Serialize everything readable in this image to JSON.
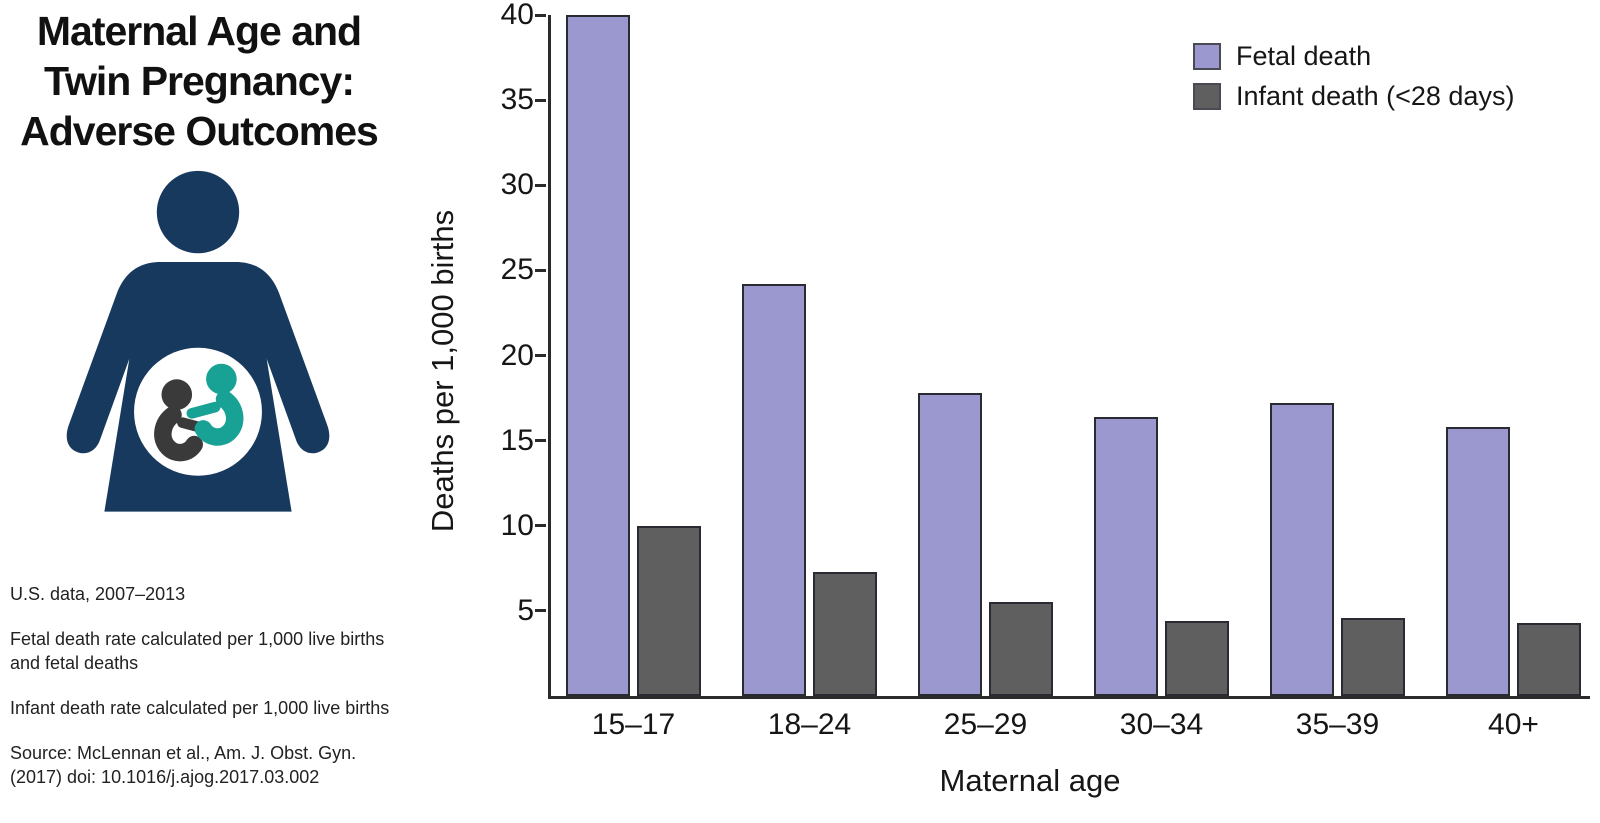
{
  "left_panel": {
    "title_lines": [
      "Maternal Age and",
      "Twin Pregnancy:",
      "Adverse Outcomes"
    ],
    "icon": "pregnant-woman-with-twins-icon",
    "notes": [
      {
        "lines": [
          "U.S. data, 2007–2013"
        ]
      },
      {
        "lines": [
          "Fetal death rate calculated per 1,000 live births",
          "and fetal deaths"
        ]
      },
      {
        "lines": [
          "Infant death rate calculated per 1,000 live births"
        ]
      },
      {
        "lines": [
          "Source: McLennan et al., Am. J. Obst. Gyn.",
          "(2017) doi: 10.1016/j.ajog.2017.03.002"
        ]
      }
    ]
  },
  "chart_data": {
    "type": "bar",
    "categories": [
      "15–17",
      "18–24",
      "25–29",
      "30–34",
      "35–39",
      "40+"
    ],
    "series": [
      {
        "name": "Fetal death",
        "color": "#9b98cf",
        "values": [
          40.0,
          24.2,
          17.8,
          16.4,
          17.2,
          15.8
        ]
      },
      {
        "name": "Infant death (<28 days)",
        "color": "#5f5f5f",
        "values": [
          10.0,
          7.3,
          5.5,
          4.4,
          4.6,
          4.3
        ]
      }
    ],
    "title": "",
    "xlabel": "Maternal age",
    "ylabel": "Deaths per 1,000 births",
    "ylim": [
      0,
      40
    ],
    "yticks": [
      5,
      10,
      15,
      20,
      25,
      30,
      35,
      40
    ],
    "grid": false,
    "legend_position": "top-right"
  },
  "colors": {
    "fetal_death_bar": "#9b98cf",
    "infant_death_bar": "#5f5f5f",
    "bar_outline": "#2a2a33",
    "axis": "#2b2b2b",
    "icon_navy": "#17395e",
    "icon_teal": "#18a295",
    "icon_fetus_dark": "#3a3a3a",
    "text": "#161616"
  }
}
